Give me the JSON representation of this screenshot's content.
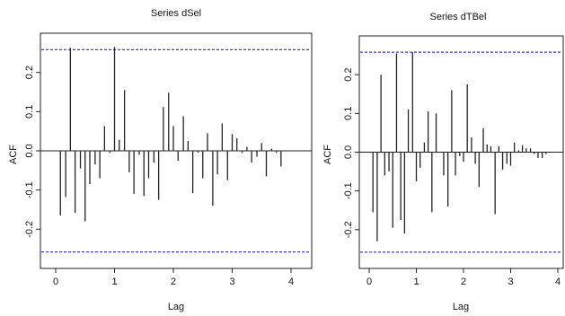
{
  "chart_data": [
    {
      "type": "bar",
      "title": "Series dSel",
      "xlabel": "Lag",
      "ylabel": "ACF",
      "xlim": [
        0,
        4.1
      ],
      "ylim": [
        -0.3,
        0.3
      ],
      "x_ticks": [
        "0",
        "1",
        "2",
        "3",
        "4"
      ],
      "y_ticks": [
        "-0.2",
        "-0.1",
        "0.0",
        "0.1",
        "0.2"
      ],
      "ci_bounds": [
        0.258,
        -0.258
      ],
      "colors": {
        "bars": "#222222",
        "ci": "#3b3bd6",
        "zero": "#222222"
      },
      "lags": [
        0.08,
        0.17,
        0.25,
        0.33,
        0.42,
        0.5,
        0.58,
        0.67,
        0.75,
        0.83,
        0.92,
        1.0,
        1.08,
        1.17,
        1.25,
        1.33,
        1.42,
        1.5,
        1.58,
        1.67,
        1.75,
        1.83,
        1.92,
        2.0,
        2.08,
        2.17,
        2.25,
        2.33,
        2.42,
        2.5,
        2.58,
        2.67,
        2.75,
        2.83,
        2.92,
        3.0,
        3.08,
        3.17,
        3.25,
        3.33,
        3.42,
        3.5,
        3.58,
        3.67,
        3.75,
        3.83,
        3.92,
        4.0
      ],
      "values": [
        -0.165,
        -0.118,
        0.263,
        -0.158,
        -0.045,
        -0.18,
        -0.085,
        -0.035,
        -0.07,
        0.063,
        -0.005,
        0.265,
        0.028,
        0.155,
        -0.055,
        -0.11,
        -0.01,
        -0.115,
        -0.07,
        -0.03,
        -0.125,
        0.112,
        0.148,
        0.063,
        -0.025,
        0.088,
        0.025,
        -0.108,
        -0.005,
        -0.07,
        0.045,
        -0.14,
        -0.06,
        0.07,
        -0.075,
        0.043,
        0.032,
        -0.005,
        0.01,
        -0.03,
        -0.015,
        0.02,
        -0.065,
        0.005,
        -0.005,
        -0.04,
        0.0,
        0.0
      ]
    },
    {
      "type": "bar",
      "title": "Series dTBel",
      "xlabel": "Lag",
      "ylabel": "ACF",
      "xlim": [
        0,
        4.1
      ],
      "ylim": [
        -0.3,
        0.3
      ],
      "x_ticks": [
        "0",
        "1",
        "2",
        "3",
        "4"
      ],
      "y_ticks": [
        "-0.2",
        "-0.1",
        "0.0",
        "0.1",
        "0.2"
      ],
      "ci_bounds": [
        0.258,
        -0.258
      ],
      "colors": {
        "bars": "#222222",
        "ci": "#3b3bd6",
        "zero": "#222222"
      },
      "lags": [
        0.08,
        0.17,
        0.25,
        0.33,
        0.42,
        0.5,
        0.58,
        0.67,
        0.75,
        0.83,
        0.92,
        1.0,
        1.08,
        1.17,
        1.25,
        1.33,
        1.42,
        1.5,
        1.58,
        1.67,
        1.75,
        1.83,
        1.92,
        2.0,
        2.08,
        2.17,
        2.25,
        2.33,
        2.42,
        2.5,
        2.58,
        2.67,
        2.75,
        2.83,
        2.92,
        3.0,
        3.08,
        3.17,
        3.25,
        3.33,
        3.42,
        3.5,
        3.58,
        3.67,
        3.75,
        3.83,
        3.92,
        4.0
      ],
      "values": [
        -0.155,
        -0.23,
        0.2,
        -0.06,
        -0.05,
        -0.195,
        0.255,
        -0.175,
        -0.21,
        0.11,
        0.258,
        -0.075,
        -0.04,
        0.025,
        0.105,
        -0.155,
        0.1,
        0.0,
        -0.06,
        -0.14,
        0.16,
        -0.06,
        -0.01,
        -0.025,
        0.175,
        0.038,
        -0.03,
        -0.09,
        0.062,
        0.02,
        0.015,
        -0.16,
        0.015,
        -0.045,
        -0.03,
        -0.035,
        0.025,
        0.005,
        0.018,
        0.01,
        0.01,
        -0.005,
        -0.015,
        -0.015,
        -0.005,
        0.0,
        0.0,
        0.0
      ]
    }
  ]
}
